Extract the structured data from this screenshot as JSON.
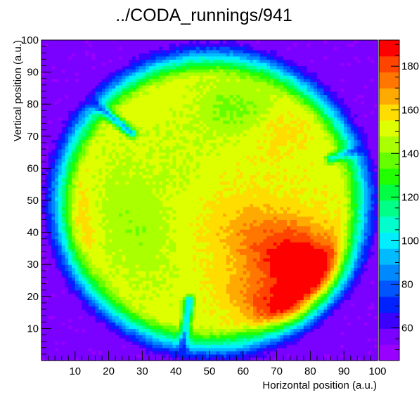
{
  "chart_data": {
    "type": "heatmap",
    "title": "../CODA_runnings/941",
    "xlabel": "Horizontal position (a.u.)",
    "ylabel": "Vertical position (a.u.)",
    "xlim": [
      0,
      100
    ],
    "ylim": [
      0,
      100
    ],
    "x_ticks": [
      "10",
      "20",
      "30",
      "40",
      "50",
      "60",
      "70",
      "80",
      "90",
      "100"
    ],
    "y_ticks": [
      "10",
      "20",
      "30",
      "40",
      "50",
      "60",
      "70",
      "80",
      "90",
      "100"
    ],
    "z_range": [
      45,
      192
    ],
    "colorbar_ticks": [
      "60",
      "80",
      "100",
      "120",
      "140",
      "160",
      "180"
    ],
    "grid": false,
    "colormap": "rainbow",
    "bins": [
      100,
      100
    ],
    "model": {
      "description_of_features": "circular illuminated region (center ~50,50, radius ~50) on a blue background",
      "center": [
        50.5,
        49.5
      ],
      "radius": 50,
      "background_value": 55,
      "plateau_value": 152,
      "blobs": [
        {
          "x": 83,
          "y": 25,
          "sx": 13,
          "sy": 8,
          "angle": -35,
          "amp": 38
        },
        {
          "x": 74,
          "y": 14,
          "sx": 12,
          "sy": 5,
          "angle": -25,
          "amp": 30
        },
        {
          "x": 70,
          "y": 35,
          "sx": 14,
          "sy": 9,
          "angle": -30,
          "amp": 18
        },
        {
          "x": 10,
          "y": 40,
          "sx": 4,
          "sy": 14,
          "angle": 0,
          "amp": 12
        },
        {
          "x": 27,
          "y": 43,
          "sx": 8,
          "sy": 14,
          "angle": 20,
          "amp": -10
        },
        {
          "x": 58,
          "y": 79,
          "sx": 8,
          "sy": 6,
          "angle": 0,
          "amp": -14
        },
        {
          "x": 40,
          "y": 63,
          "sx": 8,
          "sy": 10,
          "angle": 0,
          "amp": -4
        },
        {
          "x": 70,
          "y": 72,
          "sx": 6,
          "sy": 6,
          "angle": 0,
          "amp": 6
        }
      ],
      "scratches": [
        {
          "x1": 15,
          "y1": 81,
          "x2": 27,
          "y2": 71,
          "depth": 55
        },
        {
          "x1": 86,
          "y1": 63,
          "x2": 94,
          "y2": 66,
          "depth": 45
        },
        {
          "x1": 42,
          "y1": 4,
          "x2": 44,
          "y2": 19,
          "depth": 55
        }
      ]
    }
  }
}
